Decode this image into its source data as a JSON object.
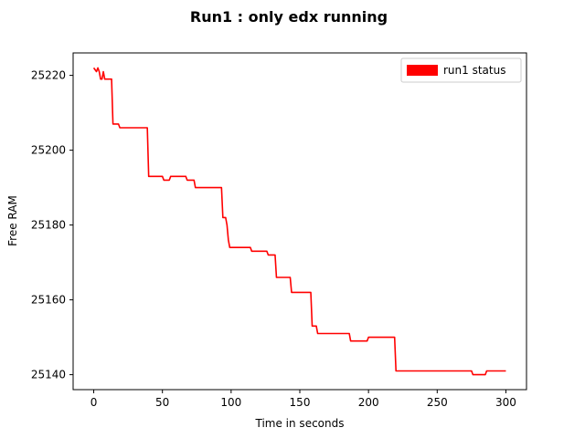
{
  "chart_data": {
    "type": "line",
    "title": "Run1 : only edx running",
    "xlabel": "Time  in seconds",
    "ylabel": "Free RAM",
    "xlim": [
      -15,
      315
    ],
    "ylim": [
      25136,
      25226
    ],
    "x_ticks": [
      0,
      50,
      100,
      150,
      200,
      250,
      300
    ],
    "y_ticks": [
      25140,
      25160,
      25180,
      25200,
      25220
    ],
    "grid": false,
    "legend": "top-right",
    "series": [
      {
        "name": "run1 status",
        "color": "#ff0000",
        "x": [
          0,
          2,
          3,
          4,
          5,
          6,
          7,
          8,
          9,
          13,
          14,
          18,
          19,
          39,
          40,
          50,
          51,
          55,
          56,
          67,
          68,
          73,
          74,
          93,
          94,
          96,
          97,
          98,
          99,
          114,
          115,
          126,
          127,
          132,
          133,
          143,
          144,
          158,
          159,
          162,
          163,
          186,
          187,
          199,
          200,
          219,
          220,
          275,
          276,
          285,
          286,
          300
        ],
        "y": [
          25222,
          25221,
          25222,
          25221,
          25219,
          25219,
          25221,
          25219,
          25219,
          25219,
          25207,
          25207,
          25206,
          25206,
          25193,
          25193,
          25192,
          25192,
          25193,
          25193,
          25192,
          25192,
          25190,
          25190,
          25182,
          25182,
          25180,
          25176,
          25174,
          25174,
          25173,
          25173,
          25172,
          25172,
          25166,
          25166,
          25162,
          25162,
          25153,
          25153,
          25151,
          25151,
          25149,
          25149,
          25150,
          25150,
          25141,
          25141,
          25140,
          25140,
          25141,
          25141
        ]
      }
    ]
  }
}
